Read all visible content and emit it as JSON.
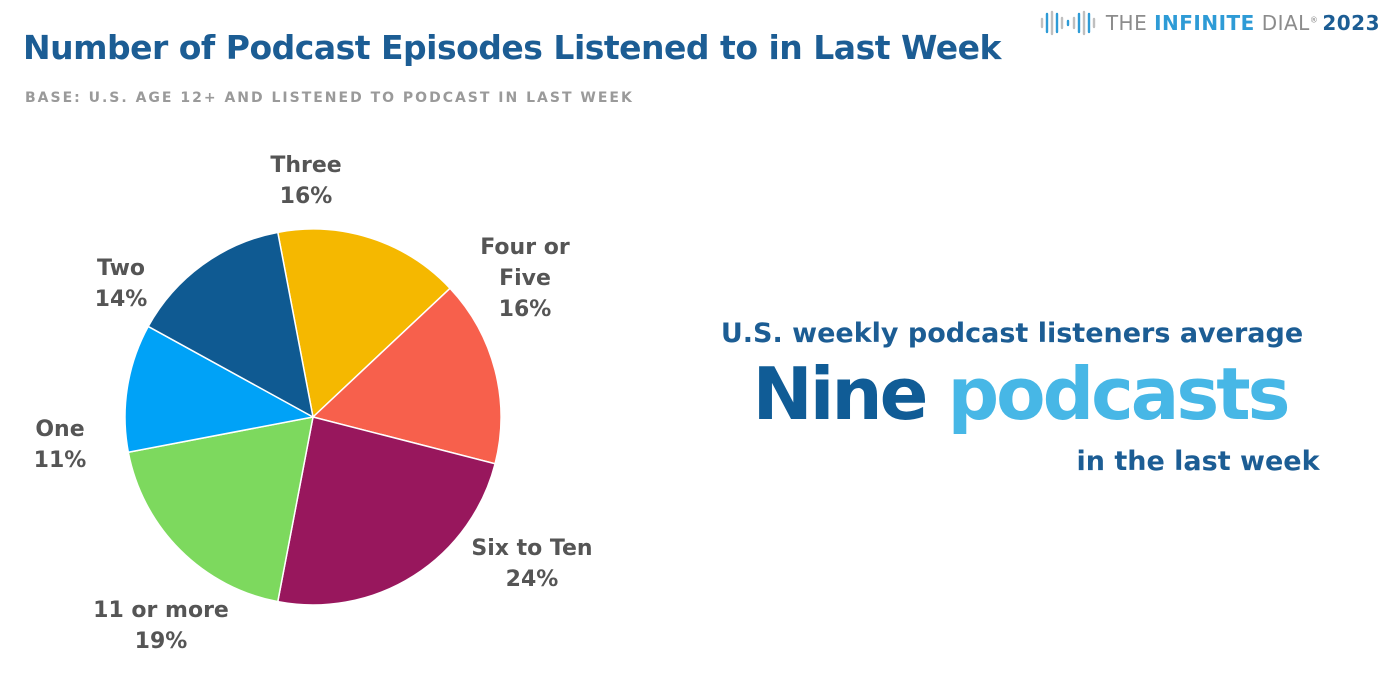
{
  "header": {
    "title": "Number of Podcast Episodes Listened to in Last Week",
    "subtitle": "BASE: U.S. AGE 12+ AND LISTENED TO PODCAST IN LAST WEEK",
    "brand": {
      "the": "THE ",
      "infinite": "INFINITE",
      "dial": " DIAL",
      "reg": "®",
      "year": "2023"
    }
  },
  "chart_data": {
    "type": "pie",
    "title": "Number of Podcast Episodes Listened to in Last Week",
    "slices": [
      {
        "label": "Three",
        "value": 16,
        "value_label": "16%",
        "color": "#f5b800"
      },
      {
        "label": "Four or Five",
        "value": 16,
        "value_label": "16%",
        "color": "#f7604c"
      },
      {
        "label": "Six to Ten",
        "value": 24,
        "value_label": "24%",
        "color": "#98175d"
      },
      {
        "label": "11 or more",
        "value": 19,
        "value_label": "19%",
        "color": "#7dd95e"
      },
      {
        "label": "One",
        "value": 11,
        "value_label": "11%",
        "color": "#00a2f7"
      },
      {
        "label": "Two",
        "value": 14,
        "value_label": "14%",
        "color": "#0f5a92"
      }
    ]
  },
  "callout": {
    "line1": "U.S. weekly podcast listeners average",
    "big_dark": "Nine",
    "big_light": "podcasts",
    "line3": "in the last week",
    "colors": {
      "dark": "#105c96",
      "light": "#47b7e6"
    }
  }
}
